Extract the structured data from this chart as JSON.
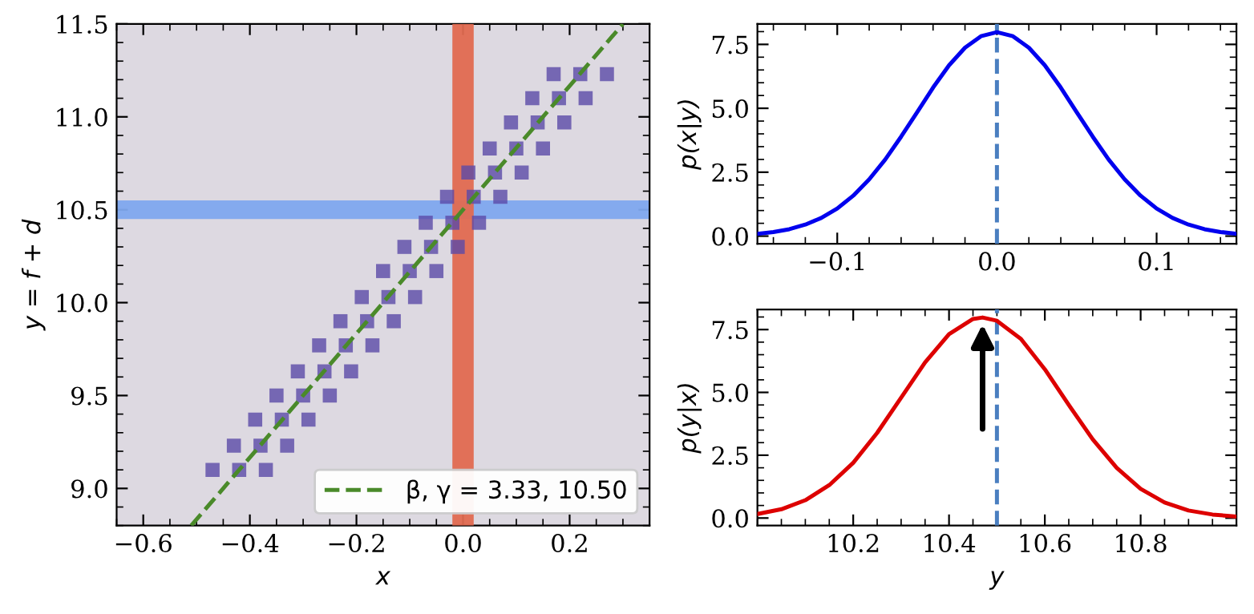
{
  "chart_data": [
    {
      "type": "scatter",
      "xlabel": "x",
      "ylabel": "y = f + d",
      "xlim": [
        -0.65,
        0.35
      ],
      "ylim": [
        8.8,
        11.5
      ],
      "xticks": [
        {
          "value": -0.6,
          "label": "−0.6"
        },
        {
          "value": -0.4,
          "label": "−0.4"
        },
        {
          "value": -0.2,
          "label": "−0.2"
        },
        {
          "value": 0,
          "label": "0.0"
        },
        {
          "value": 0.2,
          "label": "0.2"
        }
      ],
      "yticks": [
        {
          "value": 9,
          "label": "9.0"
        },
        9.5,
        {
          "value": 10,
          "label": "10.0"
        },
        10.5,
        {
          "value": 11,
          "label": "11.0"
        },
        11.5
      ],
      "series": [
        {
          "type": "scatter",
          "color": "#5b4aa8",
          "marker": "square",
          "x": [
            -0.47,
            -0.42,
            -0.37,
            -0.43,
            -0.38,
            -0.33,
            -0.39,
            -0.34,
            -0.29,
            -0.35,
            -0.3,
            -0.25,
            -0.31,
            -0.26,
            -0.21,
            -0.27,
            -0.22,
            -0.17,
            -0.23,
            -0.18,
            -0.13,
            -0.19,
            -0.14,
            -0.09,
            -0.15,
            -0.1,
            -0.05,
            -0.11,
            -0.06,
            -0.01,
            -0.07,
            -0.02,
            0.03,
            -0.03,
            0.02,
            0.07,
            0.01,
            0.06,
            0.11,
            0.05,
            0.1,
            0.15,
            0.09,
            0.14,
            0.19,
            0.13,
            0.18,
            0.23,
            0.17,
            0.22,
            0.27
          ],
          "values": [
            9.1,
            9.1,
            9.1,
            9.23,
            9.23,
            9.23,
            9.37,
            9.37,
            9.37,
            9.5,
            9.5,
            9.5,
            9.63,
            9.63,
            9.63,
            9.77,
            9.77,
            9.77,
            9.9,
            9.9,
            9.9,
            10.03,
            10.03,
            10.03,
            10.17,
            10.17,
            10.17,
            10.3,
            10.3,
            10.3,
            10.43,
            10.43,
            10.43,
            10.57,
            10.57,
            10.57,
            10.7,
            10.7,
            10.7,
            10.83,
            10.83,
            10.83,
            10.97,
            10.97,
            10.97,
            11.1,
            11.1,
            11.1,
            11.23,
            11.23,
            11.23
          ]
        },
        {
          "type": "line",
          "name": "β, γ = 3.33, 10.50",
          "color": "#4a8a2a",
          "line_style": "dashed",
          "marker": "none",
          "x": [
            -0.51,
            0.3
          ],
          "values": [
            8.8,
            11.5
          ]
        }
      ],
      "bands": [
        {
          "axis": "x",
          "from": -0.02,
          "to": 0.02,
          "color": "#e06a50"
        },
        {
          "axis": "y",
          "from": 10.45,
          "to": 10.55,
          "color": "#7ea8ee"
        }
      ],
      "legend": "bottom right",
      "grid": false
    },
    {
      "type": "line",
      "ylabel": "p(x|y)",
      "xlim": [
        -0.15,
        0.15
      ],
      "ylim": [
        -0.3,
        8.3
      ],
      "xticks": [
        {
          "value": -0.1,
          "label": "−0.1"
        },
        {
          "value": 0,
          "label": "0.0"
        },
        0.1
      ],
      "yticks": [
        {
          "value": 0,
          "label": "0.0"
        },
        2.5,
        {
          "value": 5,
          "label": "5.0"
        },
        7.5
      ],
      "series": [
        {
          "color": "#0000ee",
          "x": [
            -0.15,
            -0.14,
            -0.13,
            -0.12,
            -0.11,
            -0.1,
            -0.09,
            -0.08,
            -0.07,
            -0.06,
            -0.05,
            -0.04,
            -0.03,
            -0.02,
            -0.01,
            0,
            0.01,
            0.02,
            0.03,
            0.04,
            0.05,
            0.06,
            0.07,
            0.08,
            0.09,
            0.1,
            0.11,
            0.12,
            0.13,
            0.14,
            0.15
          ],
          "values": [
            0.09,
            0.16,
            0.27,
            0.45,
            0.71,
            1.08,
            1.58,
            2.22,
            2.99,
            3.89,
            4.84,
            5.81,
            6.68,
            7.37,
            7.82,
            7.98,
            7.82,
            7.37,
            6.68,
            5.81,
            4.84,
            3.89,
            2.99,
            2.22,
            1.58,
            1.08,
            0.71,
            0.45,
            0.27,
            0.16,
            0.09
          ]
        }
      ],
      "ref_lines": [
        {
          "axis": "x",
          "value": 0,
          "color": "#4a7fc0",
          "line_style": "dashed"
        }
      ],
      "grid": false,
      "legend": false,
      "tick_labels": "xy"
    },
    {
      "type": "line",
      "xlabel": "y",
      "ylabel": "p(y|x)",
      "xlim": [
        10.0,
        11.0
      ],
      "ylim": [
        -0.3,
        8.3
      ],
      "xticks": [
        10.2,
        10.4,
        10.6,
        10.8
      ],
      "yticks": [
        {
          "value": 0,
          "label": "0.0"
        },
        2.5,
        {
          "value": 5,
          "label": "5.0"
        },
        7.5
      ],
      "series": [
        {
          "color": "#dd0000",
          "x": [
            10.0,
            10.05,
            10.1,
            10.15,
            10.2,
            10.25,
            10.3,
            10.35,
            10.4,
            10.45,
            10.47,
            10.5,
            10.55,
            10.6,
            10.65,
            10.7,
            10.75,
            10.8,
            10.85,
            10.9,
            10.95,
            11.0
          ],
          "values": [
            0.16,
            0.35,
            0.71,
            1.31,
            2.2,
            3.39,
            4.79,
            6.19,
            7.32,
            7.92,
            7.98,
            7.85,
            7.13,
            5.92,
            4.5,
            3.13,
            2.0,
            1.16,
            0.62,
            0.3,
            0.14,
            0.06
          ]
        }
      ],
      "ref_lines": [
        {
          "axis": "x",
          "value": 10.5,
          "color": "#4a7fc0",
          "line_style": "dashed"
        }
      ],
      "grid": false,
      "legend": false
    }
  ]
}
